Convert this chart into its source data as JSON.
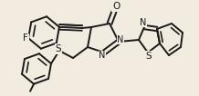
{
  "background_color": "#f2ece0",
  "line_color": "#1a1a1a",
  "line_width": 1.4,
  "font_size": 7.0,
  "figsize": [
    2.18,
    1.06
  ],
  "dpi": 100,
  "xlim": [
    0,
    218
  ],
  "ylim": [
    0,
    106
  ]
}
